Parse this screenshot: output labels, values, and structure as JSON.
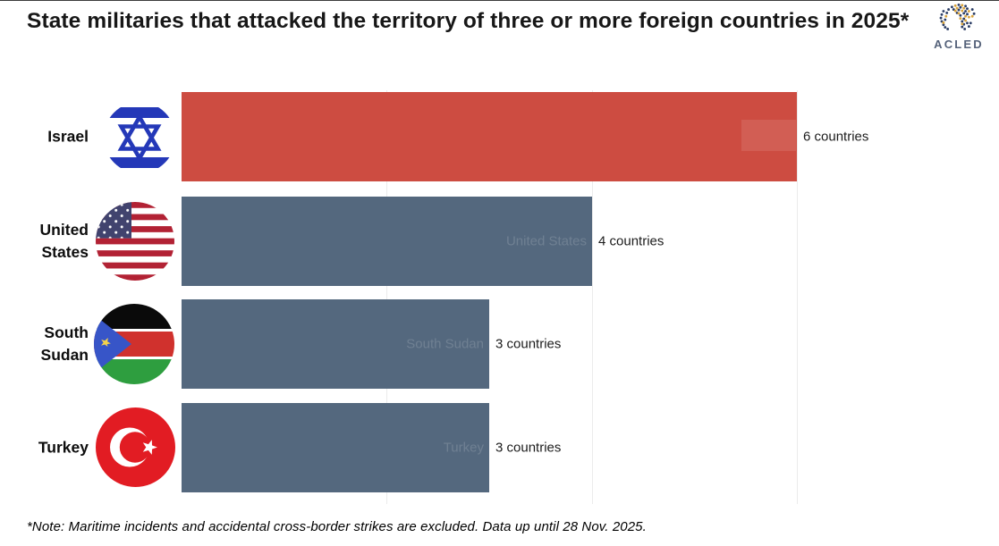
{
  "header": {
    "title": "State militaries that attacked the territory of three or more foreign countries in 2025*",
    "logo_text": "ACLED",
    "logo_colors": {
      "navy": "#2c3e66",
      "gold": "#d9a43c",
      "text": "#55627a"
    }
  },
  "chart_data": {
    "type": "bar",
    "orientation": "horizontal",
    "title": "State militaries that attacked the territory of three or more foreign countries in 2025*",
    "categories": [
      "Israel",
      "United States",
      "South Sudan",
      "Turkey"
    ],
    "values": [
      6,
      4,
      3,
      3
    ],
    "value_labels": [
      "6 countries",
      "4 countries",
      "3 countries",
      "3 countries"
    ],
    "xlim": [
      0,
      6
    ],
    "gridlines_x": [
      2,
      4,
      6
    ],
    "grid": "vertical, light gray, no tick labels",
    "legend": "none",
    "bar_colors": [
      "#cd4c41",
      "#54687e",
      "#54687e",
      "#54687e"
    ],
    "flag_icons": [
      "israel-flag",
      "united-states-flag",
      "south-sudan-flag",
      "turkey-flag"
    ]
  },
  "rows": [
    {
      "label": "Israel",
      "inbar_label": "",
      "value_label": "6 countries"
    },
    {
      "label": "United\nStates",
      "inbar_label": "United States",
      "value_label": "4 countries"
    },
    {
      "label": "South\nSudan",
      "inbar_label": "South Sudan",
      "value_label": "3 countries"
    },
    {
      "label": "Turkey",
      "inbar_label": "Turkey",
      "value_label": "3 countries"
    }
  ],
  "footer": {
    "note": "*Note: Maritime incidents and accidental cross-border strikes are excluded. Data up until 28 Nov. 2025."
  }
}
